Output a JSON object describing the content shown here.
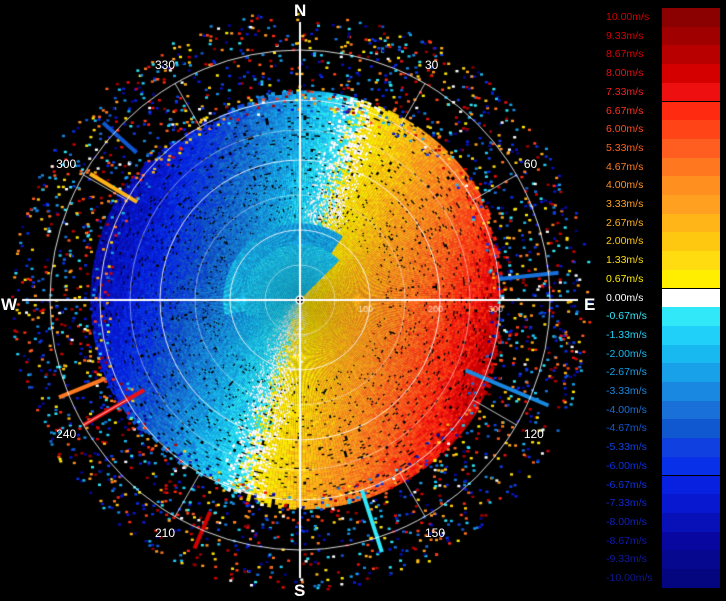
{
  "compass": {
    "north": "N",
    "east": "E",
    "south": "S",
    "west": "W"
  },
  "azimuth_labels": [
    {
      "deg": 30,
      "text": "30"
    },
    {
      "deg": 60,
      "text": "60"
    },
    {
      "deg": 120,
      "text": "120"
    },
    {
      "deg": 150,
      "text": "150"
    },
    {
      "deg": 210,
      "text": "210"
    },
    {
      "deg": 240,
      "text": "240"
    },
    {
      "deg": 300,
      "text": "300"
    },
    {
      "deg": 330,
      "text": "330"
    }
  ],
  "range_labels": [
    "100",
    "200",
    "300"
  ],
  "color_scale": {
    "entries": [
      {
        "label": "10.00m/s",
        "color": "#8b0000",
        "text_color": "#d40000"
      },
      {
        "label": "9.33m/s",
        "color": "#a00000",
        "text_color": "#d40000"
      },
      {
        "label": "8.67m/s",
        "color": "#b80000",
        "text_color": "#e00000"
      },
      {
        "label": "8.00m/s",
        "color": "#d40000",
        "text_color": "#e81010"
      },
      {
        "label": "7.33m/s",
        "color": "#ee1010",
        "text_color": "#f02020"
      },
      {
        "label": "6.67m/s",
        "color": "#ff2a10",
        "text_color": "#ff3020"
      },
      {
        "label": "6.00m/s",
        "color": "#ff4418",
        "text_color": "#ff4a20"
      },
      {
        "label": "5.33m/s",
        "color": "#ff5e20",
        "text_color": "#ff6020"
      },
      {
        "label": "4.67m/s",
        "color": "#ff7820",
        "text_color": "#ff7a20"
      },
      {
        "label": "4.00m/s",
        "color": "#ff9020",
        "text_color": "#ff9020"
      },
      {
        "label": "3.33m/s",
        "color": "#ffa020",
        "text_color": "#ffa020"
      },
      {
        "label": "2.67m/s",
        "color": "#ffb418",
        "text_color": "#ffb418"
      },
      {
        "label": "2.00m/s",
        "color": "#ffc810",
        "text_color": "#ffc810"
      },
      {
        "label": "1.33m/s",
        "color": "#ffdc10",
        "text_color": "#ffdc10"
      },
      {
        "label": "0.67m/s",
        "color": "#ffee00",
        "text_color": "#ffee00"
      },
      {
        "label": "0.00m/s",
        "color": "#ffffff",
        "text_color": "#ffffff"
      },
      {
        "label": "-0.67m/s",
        "color": "#30e8f8",
        "text_color": "#30e8f8"
      },
      {
        "label": "-1.33m/s",
        "color": "#20d0f8",
        "text_color": "#20d0f8"
      },
      {
        "label": "-2.00m/s",
        "color": "#18b8f0",
        "text_color": "#18b8f0"
      },
      {
        "label": "-2.67m/s",
        "color": "#18a0e8",
        "text_color": "#18a0e8"
      },
      {
        "label": "-3.33m/s",
        "color": "#1888e0",
        "text_color": "#1888e0"
      },
      {
        "label": "-4.00m/s",
        "color": "#1870d8",
        "text_color": "#1870d8"
      },
      {
        "label": "-4.67m/s",
        "color": "#1058d0",
        "text_color": "#1058d0"
      },
      {
        "label": "-5.33m/s",
        "color": "#1040e0",
        "text_color": "#1040e0"
      },
      {
        "label": "-6.00m/s",
        "color": "#0830e8",
        "text_color": "#0830e8"
      },
      {
        "label": "-6.67m/s",
        "color": "#0820e0",
        "text_color": "#1030e0"
      },
      {
        "label": "-7.33m/s",
        "color": "#0818d0",
        "text_color": "#1028d0"
      },
      {
        "label": "-8.00m/s",
        "color": "#0810b8",
        "text_color": "#1020c0"
      },
      {
        "label": "-8.67m/s",
        "color": "#0808a0",
        "text_color": "#1018b0"
      },
      {
        "label": "-9.33m/s",
        "color": "#060890",
        "text_color": "#1018a0"
      },
      {
        "label": "-10.00m/s",
        "color": "#040680",
        "text_color": "#101890"
      }
    ]
  }
}
